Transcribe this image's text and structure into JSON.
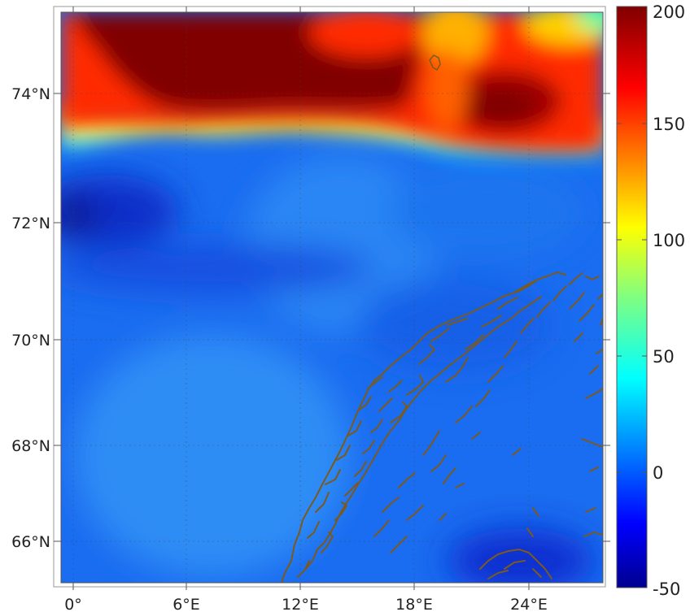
{
  "map": {
    "lat_ticks": [
      "66°N",
      "68°N",
      "70°N",
      "72°N",
      "74°N"
    ],
    "lon_ticks": [
      "0°",
      "6°E",
      "12°E",
      "18°E",
      "24°E"
    ],
    "extent": {
      "lon": [
        -1,
        27.5
      ],
      "lat": [
        65.2,
        75.4
      ]
    },
    "coastline_color": "#7a5a1e",
    "grid": "dotted",
    "field_description": "gridded field over the Norwegian and Barents Seas, high values north of about 73.3°N, low values southward"
  },
  "colorbar": {
    "ticks": [
      "200",
      "150",
      "100",
      "50",
      "0",
      "-50"
    ],
    "range": [
      -50,
      200
    ],
    "colormap": "jet",
    "colors": [
      "#00008f",
      "#0000ff",
      "#0080ff",
      "#00ffff",
      "#80ff80",
      "#ffff00",
      "#ff8000",
      "#ff0000",
      "#800000"
    ]
  }
}
